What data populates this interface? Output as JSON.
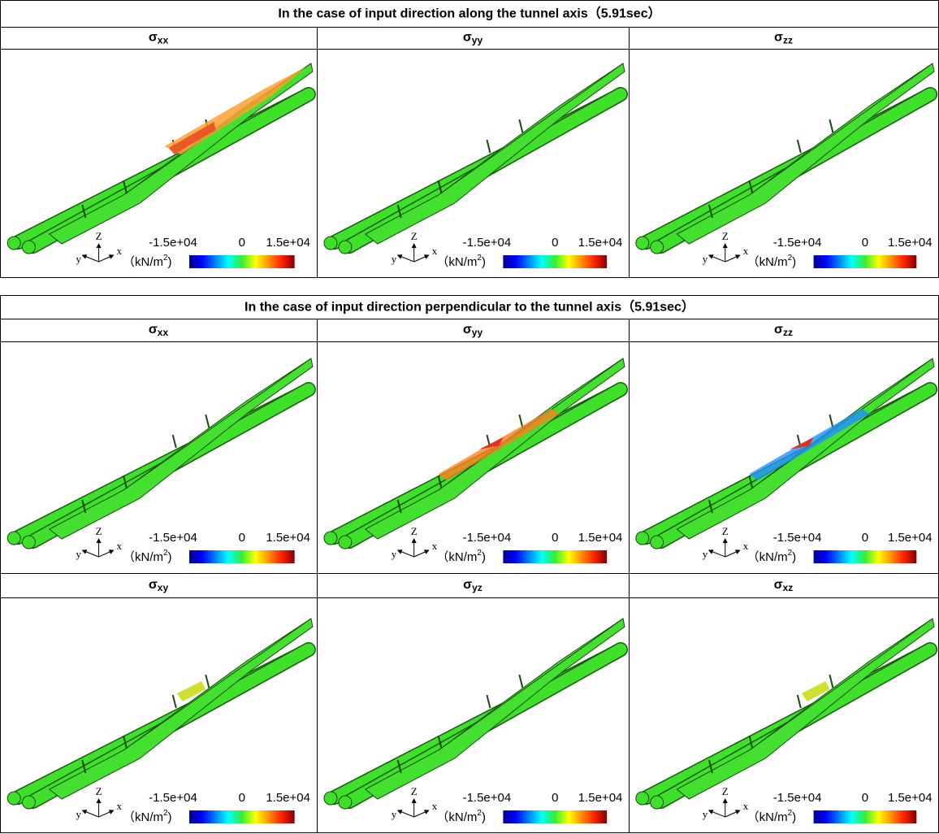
{
  "sections": [
    {
      "title": "In the case of input direction along the tunnel axis（5.91sec）",
      "panel_rows": [
        [
          {
            "symbol": "σ",
            "subscript": "xx"
          },
          {
            "symbol": "σ",
            "subscript": "yy"
          },
          {
            "symbol": "σ",
            "subscript": "zz"
          }
        ]
      ]
    },
    {
      "title": "In the case of input direction perpendicular to the tunnel axis（5.91sec）",
      "panel_rows": [
        [
          {
            "symbol": "σ",
            "subscript": "xx"
          },
          {
            "symbol": "σ",
            "subscript": "yy"
          },
          {
            "symbol": "σ",
            "subscript": "zz"
          }
        ],
        [
          {
            "symbol": "σ",
            "subscript": "xy"
          },
          {
            "symbol": "σ",
            "subscript": "yz"
          },
          {
            "symbol": "σ",
            "subscript": "xz"
          }
        ]
      ]
    }
  ],
  "colorbar": {
    "min_label": "-1.5e+04",
    "mid_label": "0",
    "max_label": "1.5e+04",
    "unit": "（kN/m",
    "unit_exponent": "2",
    "unit_close": ")"
  },
  "axes_triad": {
    "z": "Z",
    "y": "y",
    "x": "x"
  }
}
